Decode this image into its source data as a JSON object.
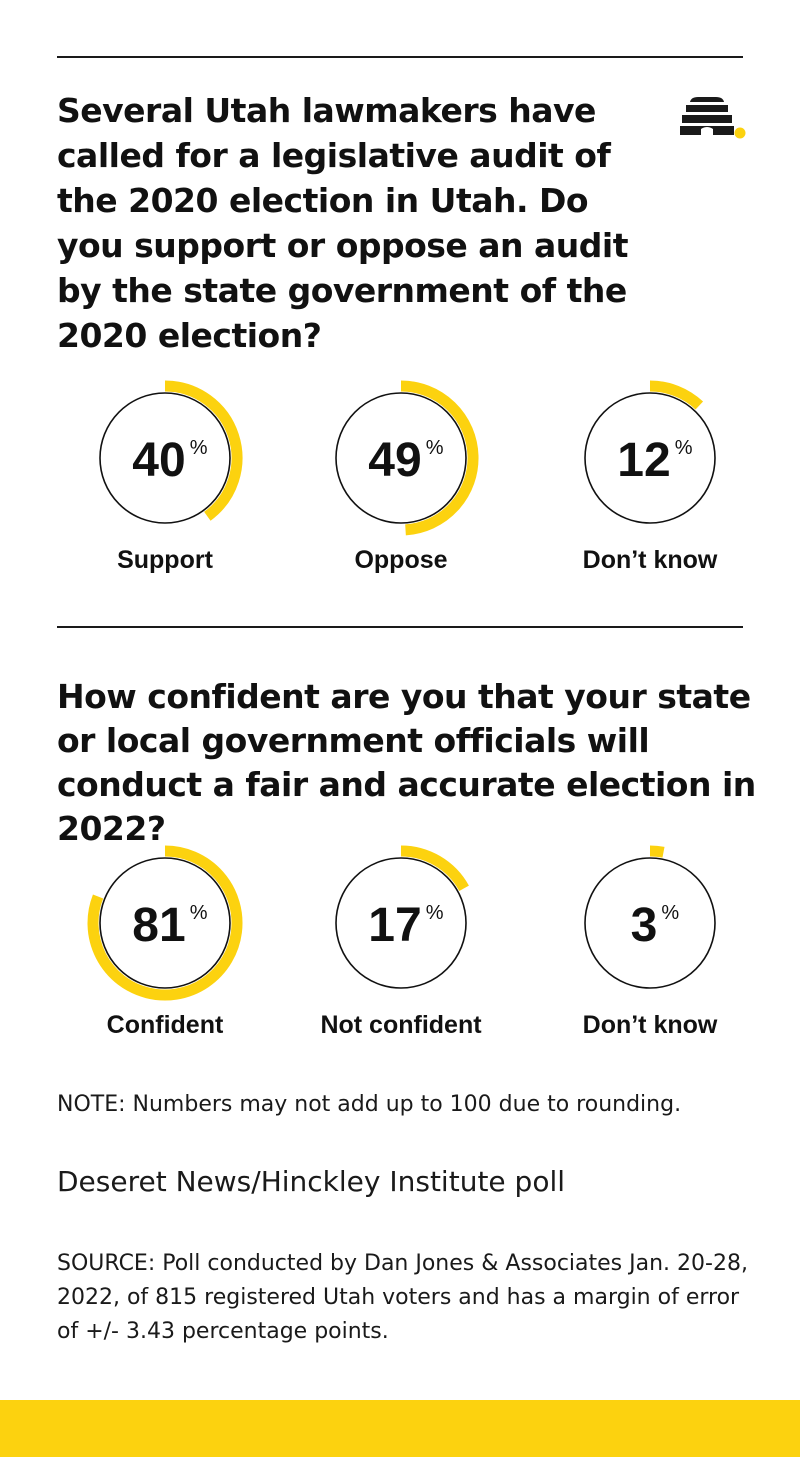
{
  "colors": {
    "accent": "#fcd20f",
    "ink": "#111111",
    "background": "#ffffff"
  },
  "logo_icon": "beehive-icon",
  "section1": {
    "question": "Several Utah lawmakers have called for a legislative audit of the 2020 election in Utah. Do you support or oppose an audit by the state government of the 2020 election?"
  },
  "section2": {
    "question": "How confident are you that your state or local government officials will conduct a fair and accurate election in 2022?"
  },
  "percent_sign": "%",
  "chart_data": [
    {
      "type": "pie",
      "categories": [
        "Support",
        "Oppose",
        "Don’t know"
      ],
      "values": [
        40,
        49,
        12
      ],
      "unit": "%"
    },
    {
      "type": "pie",
      "categories": [
        "Confident",
        "Not confident",
        "Don’t know"
      ],
      "values": [
        81,
        17,
        3
      ],
      "unit": "%"
    }
  ],
  "note": "NOTE: Numbers may not add up to 100 due to rounding.",
  "credit": "Deseret News/Hinckley Institute poll",
  "source": "SOURCE: Poll conducted by Dan Jones & Associates Jan. 20-28, 2022, of 815 registered Utah voters and has a margin of error of +/- 3.43 percentage points."
}
